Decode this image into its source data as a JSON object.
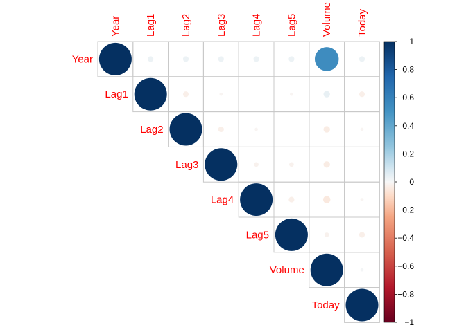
{
  "chart_data": {
    "type": "heatmap",
    "style": "correlation-plot-upper-triangle-circles",
    "variables": [
      "Year",
      "Lag1",
      "Lag2",
      "Lag3",
      "Lag4",
      "Lag5",
      "Volume",
      "Today"
    ],
    "matrix": [
      [
        1.0,
        0.03,
        0.03,
        0.03,
        0.03,
        0.03,
        0.54,
        0.03
      ],
      [
        0.03,
        1.0,
        -0.03,
        -0.01,
        -0.0,
        -0.01,
        0.04,
        -0.03
      ],
      [
        0.03,
        -0.03,
        1.0,
        -0.03,
        -0.01,
        -0.0,
        -0.04,
        -0.01
      ],
      [
        0.03,
        -0.01,
        -0.03,
        1.0,
        -0.02,
        -0.02,
        -0.04,
        -0.0
      ],
      [
        0.03,
        -0.0,
        -0.01,
        -0.02,
        1.0,
        -0.03,
        -0.05,
        -0.01
      ],
      [
        0.03,
        -0.01,
        -0.0,
        -0.02,
        -0.03,
        1.0,
        -0.02,
        -0.03
      ],
      [
        0.54,
        0.04,
        -0.04,
        -0.04,
        -0.05,
        -0.02,
        1.0,
        0.01
      ],
      [
        0.03,
        -0.03,
        -0.01,
        -0.0,
        -0.01,
        -0.03,
        0.01,
        1.0
      ]
    ],
    "legend_ticks": [
      "1",
      "0.8",
      "0.6",
      "0.4",
      "0.2",
      "0",
      "−0.2",
      "−0.4",
      "−0.6",
      "−0.8",
      "−1"
    ],
    "legend_range": [
      -1,
      1
    ],
    "legend_position": "right",
    "color_negative": "#67001f",
    "color_zero": "#f7f7f7",
    "color_positive": "#053061",
    "label_color": "#ff0000"
  }
}
